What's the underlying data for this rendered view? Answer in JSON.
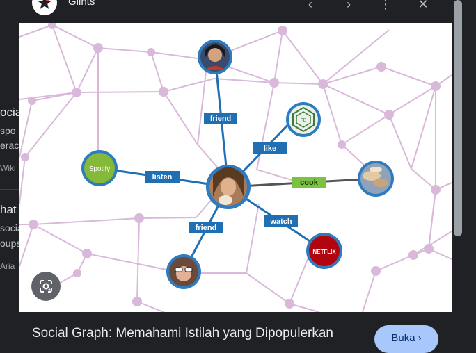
{
  "background_results": [
    {
      "title": "ocia",
      "lines": [
        "spo",
        "erac"
      ],
      "source": "Wiki"
    },
    {
      "title": "hat",
      "lines": [
        "socia",
        "oups"
      ],
      "source": "Aria"
    }
  ],
  "viewer": {
    "site_name": "Glints",
    "caption": "Social Graph: Memahami Istilah yang Dipopulerkan",
    "open_button": "Buka",
    "graph": {
      "center": "you",
      "edges": [
        {
          "label": "friend",
          "target": "friend-top"
        },
        {
          "label": "like",
          "target": "page"
        },
        {
          "label": "listen",
          "target": "spotify"
        },
        {
          "label": "cook",
          "target": "food"
        },
        {
          "label": "friend",
          "target": "friend-bottom"
        },
        {
          "label": "watch",
          "target": "netflix"
        }
      ],
      "spotify_text": "Spotify",
      "netflix_text": "NETFLIX",
      "page_text": "FB"
    }
  },
  "colors": {
    "edge_blue": "#1f6fb2",
    "cook_green": "#7bc242",
    "web_line": "#d9b8da",
    "node_ring": "#2e7bbf",
    "open_button_bg": "#a8c7fa"
  }
}
